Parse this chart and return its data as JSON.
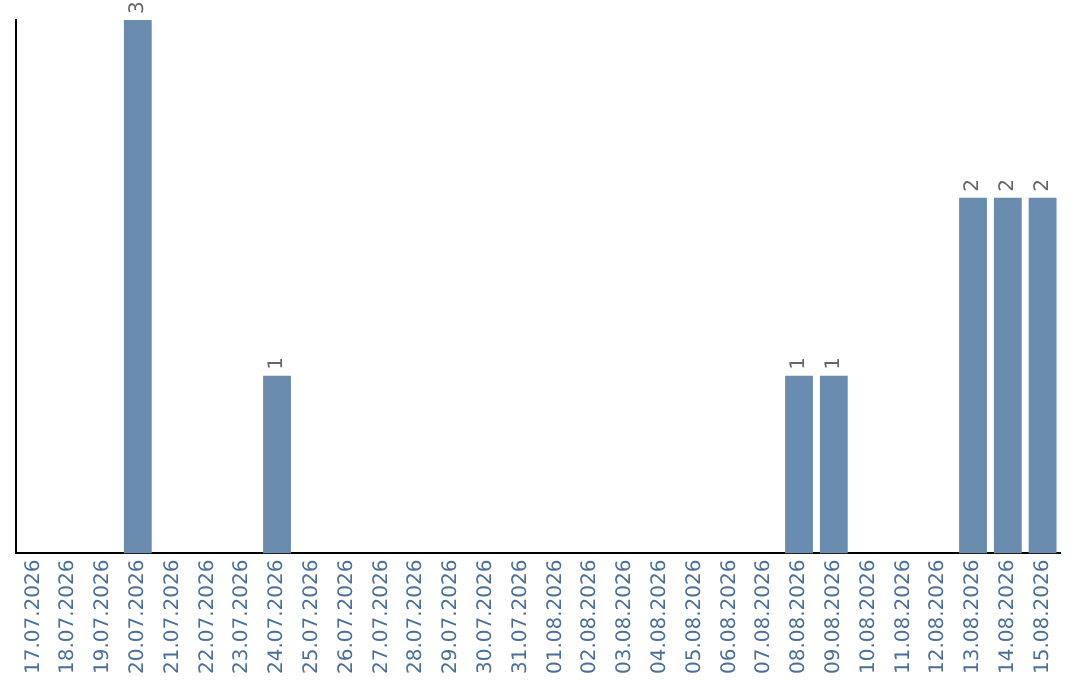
{
  "chart_data": {
    "type": "bar",
    "categories": [
      "17.07.2026",
      "18.07.2026",
      "19.07.2026",
      "20.07.2026",
      "21.07.2026",
      "22.07.2026",
      "23.07.2026",
      "24.07.2026",
      "25.07.2026",
      "26.07.2026",
      "27.07.2026",
      "28.07.2026",
      "29.07.2026",
      "30.07.2026",
      "31.07.2026",
      "01.08.2026",
      "02.08.2026",
      "03.08.2026",
      "04.08.2026",
      "05.08.2026",
      "06.08.2026",
      "07.08.2026",
      "08.08.2026",
      "09.08.2026",
      "10.08.2026",
      "11.08.2026",
      "12.08.2026",
      "13.08.2026",
      "14.08.2026",
      "15.08.2026"
    ],
    "values": [
      0,
      0,
      0,
      3,
      0,
      0,
      0,
      1,
      0,
      0,
      0,
      0,
      0,
      0,
      0,
      0,
      0,
      0,
      0,
      0,
      0,
      0,
      1,
      1,
      0,
      0,
      0,
      2,
      2,
      2
    ],
    "value_labels": [
      null,
      null,
      null,
      "3",
      null,
      null,
      null,
      "1",
      null,
      null,
      null,
      null,
      null,
      null,
      null,
      null,
      null,
      null,
      null,
      null,
      null,
      null,
      "1",
      "1",
      null,
      null,
      null,
      "2",
      "2",
      "2"
    ],
    "color": "#6a8caf",
    "grid": false,
    "legend": false
  }
}
